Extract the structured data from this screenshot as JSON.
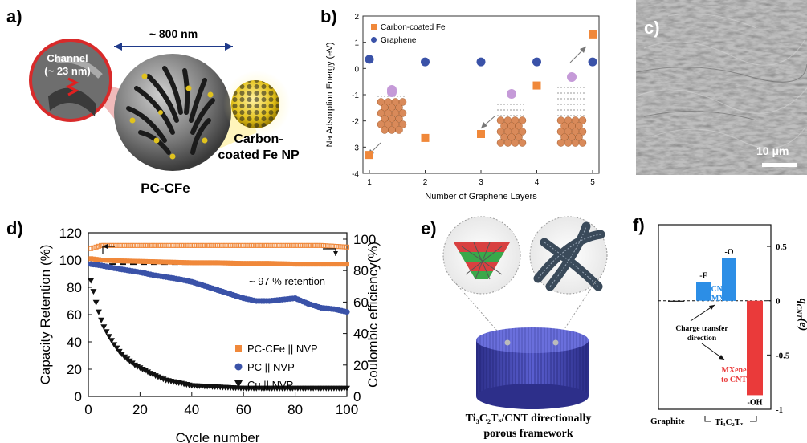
{
  "panel_a": {
    "label": "a)",
    "channel_title": "Channel",
    "channel_size": "(~ 23 nm)",
    "diameter": "~ 800 nm",
    "particle_name": "PC-CFe",
    "np_line1": "Carbon-",
    "np_line2": "coated Fe NP"
  },
  "panel_b": {
    "label": "b)",
    "chart_data": {
      "type": "scatter",
      "xlabel": "Number of Graphene Layers",
      "ylabel": "Na Adsorption Energy (eV)",
      "xlim": [
        1,
        5
      ],
      "ylim": [
        -4,
        2
      ],
      "x_ticks": [
        1,
        2,
        3,
        4,
        5
      ],
      "y_ticks": [
        -4,
        -3,
        -2,
        -1,
        0,
        1,
        2
      ],
      "legend_position": "top-left",
      "series": [
        {
          "name": "Carbon-coated Fe",
          "color": "#f0883a",
          "marker": "square",
          "x": [
            1,
            2,
            3,
            4,
            5
          ],
          "y": [
            -3.3,
            -2.65,
            -2.5,
            -0.65,
            1.3
          ]
        },
        {
          "name": "Graphene",
          "color": "#3a52a8",
          "marker": "circle",
          "x": [
            1,
            2,
            3,
            4,
            5
          ],
          "y": [
            0.35,
            0.25,
            0.25,
            0.25,
            0.25
          ]
        }
      ]
    }
  },
  "panel_c": {
    "label": "c)",
    "scale_bar": "10 μm"
  },
  "panel_d": {
    "label": "d)",
    "chart_data": {
      "type": "scatter",
      "xlabel": "Cycle number",
      "ylabel": "Capacity Retention (%)",
      "y2label": "Coulombic efficiency(%)",
      "xlim": [
        0,
        100
      ],
      "ylim": [
        0,
        120
      ],
      "y2lim": [
        0,
        100
      ],
      "x_ticks": [
        0,
        20,
        40,
        60,
        80,
        100
      ],
      "y_ticks": [
        0,
        20,
        40,
        60,
        80,
        100,
        120
      ],
      "y2_ticks": [
        0,
        20,
        40,
        60,
        80,
        100
      ],
      "annotation": "~ 97 % retention",
      "legend_position": "bottom-right",
      "series": [
        {
          "name": "PC-CFe || NVP",
          "color": "#f0883a",
          "marker": "square",
          "x": [
            1,
            5,
            10,
            20,
            30,
            40,
            50,
            60,
            70,
            80,
            90,
            100
          ],
          "y": [
            101,
            100,
            99.5,
            99,
            98.5,
            98,
            98,
            97.5,
            97.5,
            97,
            97,
            97
          ]
        },
        {
          "name": "PC || NVP",
          "color": "#3a52a8",
          "marker": "circle",
          "x": [
            1,
            5,
            10,
            15,
            20,
            25,
            30,
            35,
            40,
            45,
            50,
            55,
            60,
            65,
            70,
            75,
            80,
            85,
            90,
            95,
            100
          ],
          "y": [
            97,
            96,
            94,
            92.5,
            91,
            89,
            87.5,
            86,
            84,
            81,
            78,
            75,
            72,
            70,
            70,
            71,
            72,
            68,
            65,
            64,
            62
          ]
        },
        {
          "name": "Cu || NVP",
          "color": "#111111",
          "marker": "triangle-down",
          "x": [
            1,
            2,
            3,
            4,
            5,
            6,
            8,
            10,
            12,
            14,
            16,
            18,
            20,
            25,
            30,
            35,
            40,
            50,
            60,
            70,
            80,
            90,
            100
          ],
          "y": [
            85,
            77,
            69,
            62,
            56,
            51,
            44,
            38,
            33,
            29,
            26,
            23,
            21,
            16,
            12,
            10,
            8,
            7,
            6,
            6,
            6,
            6,
            6
          ]
        },
        {
          "name": "Coulombic efficiency",
          "color": "#f0883a",
          "marker": "open-square",
          "axis": "y2",
          "x": [
            1,
            5,
            10,
            20,
            30,
            40,
            50,
            60,
            70,
            80,
            90,
            100
          ],
          "y": [
            94,
            96,
            96,
            96,
            96,
            96,
            96,
            96,
            96,
            96,
            96,
            95
          ]
        }
      ]
    }
  },
  "panel_e": {
    "label": "e)",
    "caption_formula": "Ti₃C₂Tₓ/CNT directionally",
    "caption_line2": "porous framework"
  },
  "panel_f": {
    "label": "f)",
    "chart_data": {
      "type": "bar",
      "categories": [
        "Graphite",
        "-F",
        "-O",
        "-OH"
      ],
      "values": [
        0.0,
        0.17,
        0.39,
        -0.87
      ],
      "ylim": [
        -1,
        0.5
      ],
      "y_ticks": [
        -1,
        -0.5,
        0,
        0.5
      ],
      "y_tick_labels": [
        "-1",
        "-0.5",
        "0",
        "0.5"
      ],
      "ylabel": "q",
      "ylabel_sub": "CNT",
      "ylabel_tail": "(e)",
      "colors": {
        "positive": "#2c8ee6",
        "negative": "#ea3a3a"
      },
      "xlabel_left": "Graphite",
      "xlabel_right": "Ti₃C₂Tₓ",
      "annotations": {
        "cnt_to_mxene_1": "CNT",
        "cnt_to_mxene_2": "to MXene",
        "charge_1": "Charge transfer",
        "charge_2": "direction",
        "mxene_to_cnt_1": "MXene",
        "mxene_to_cnt_2": "to CNT"
      }
    }
  }
}
